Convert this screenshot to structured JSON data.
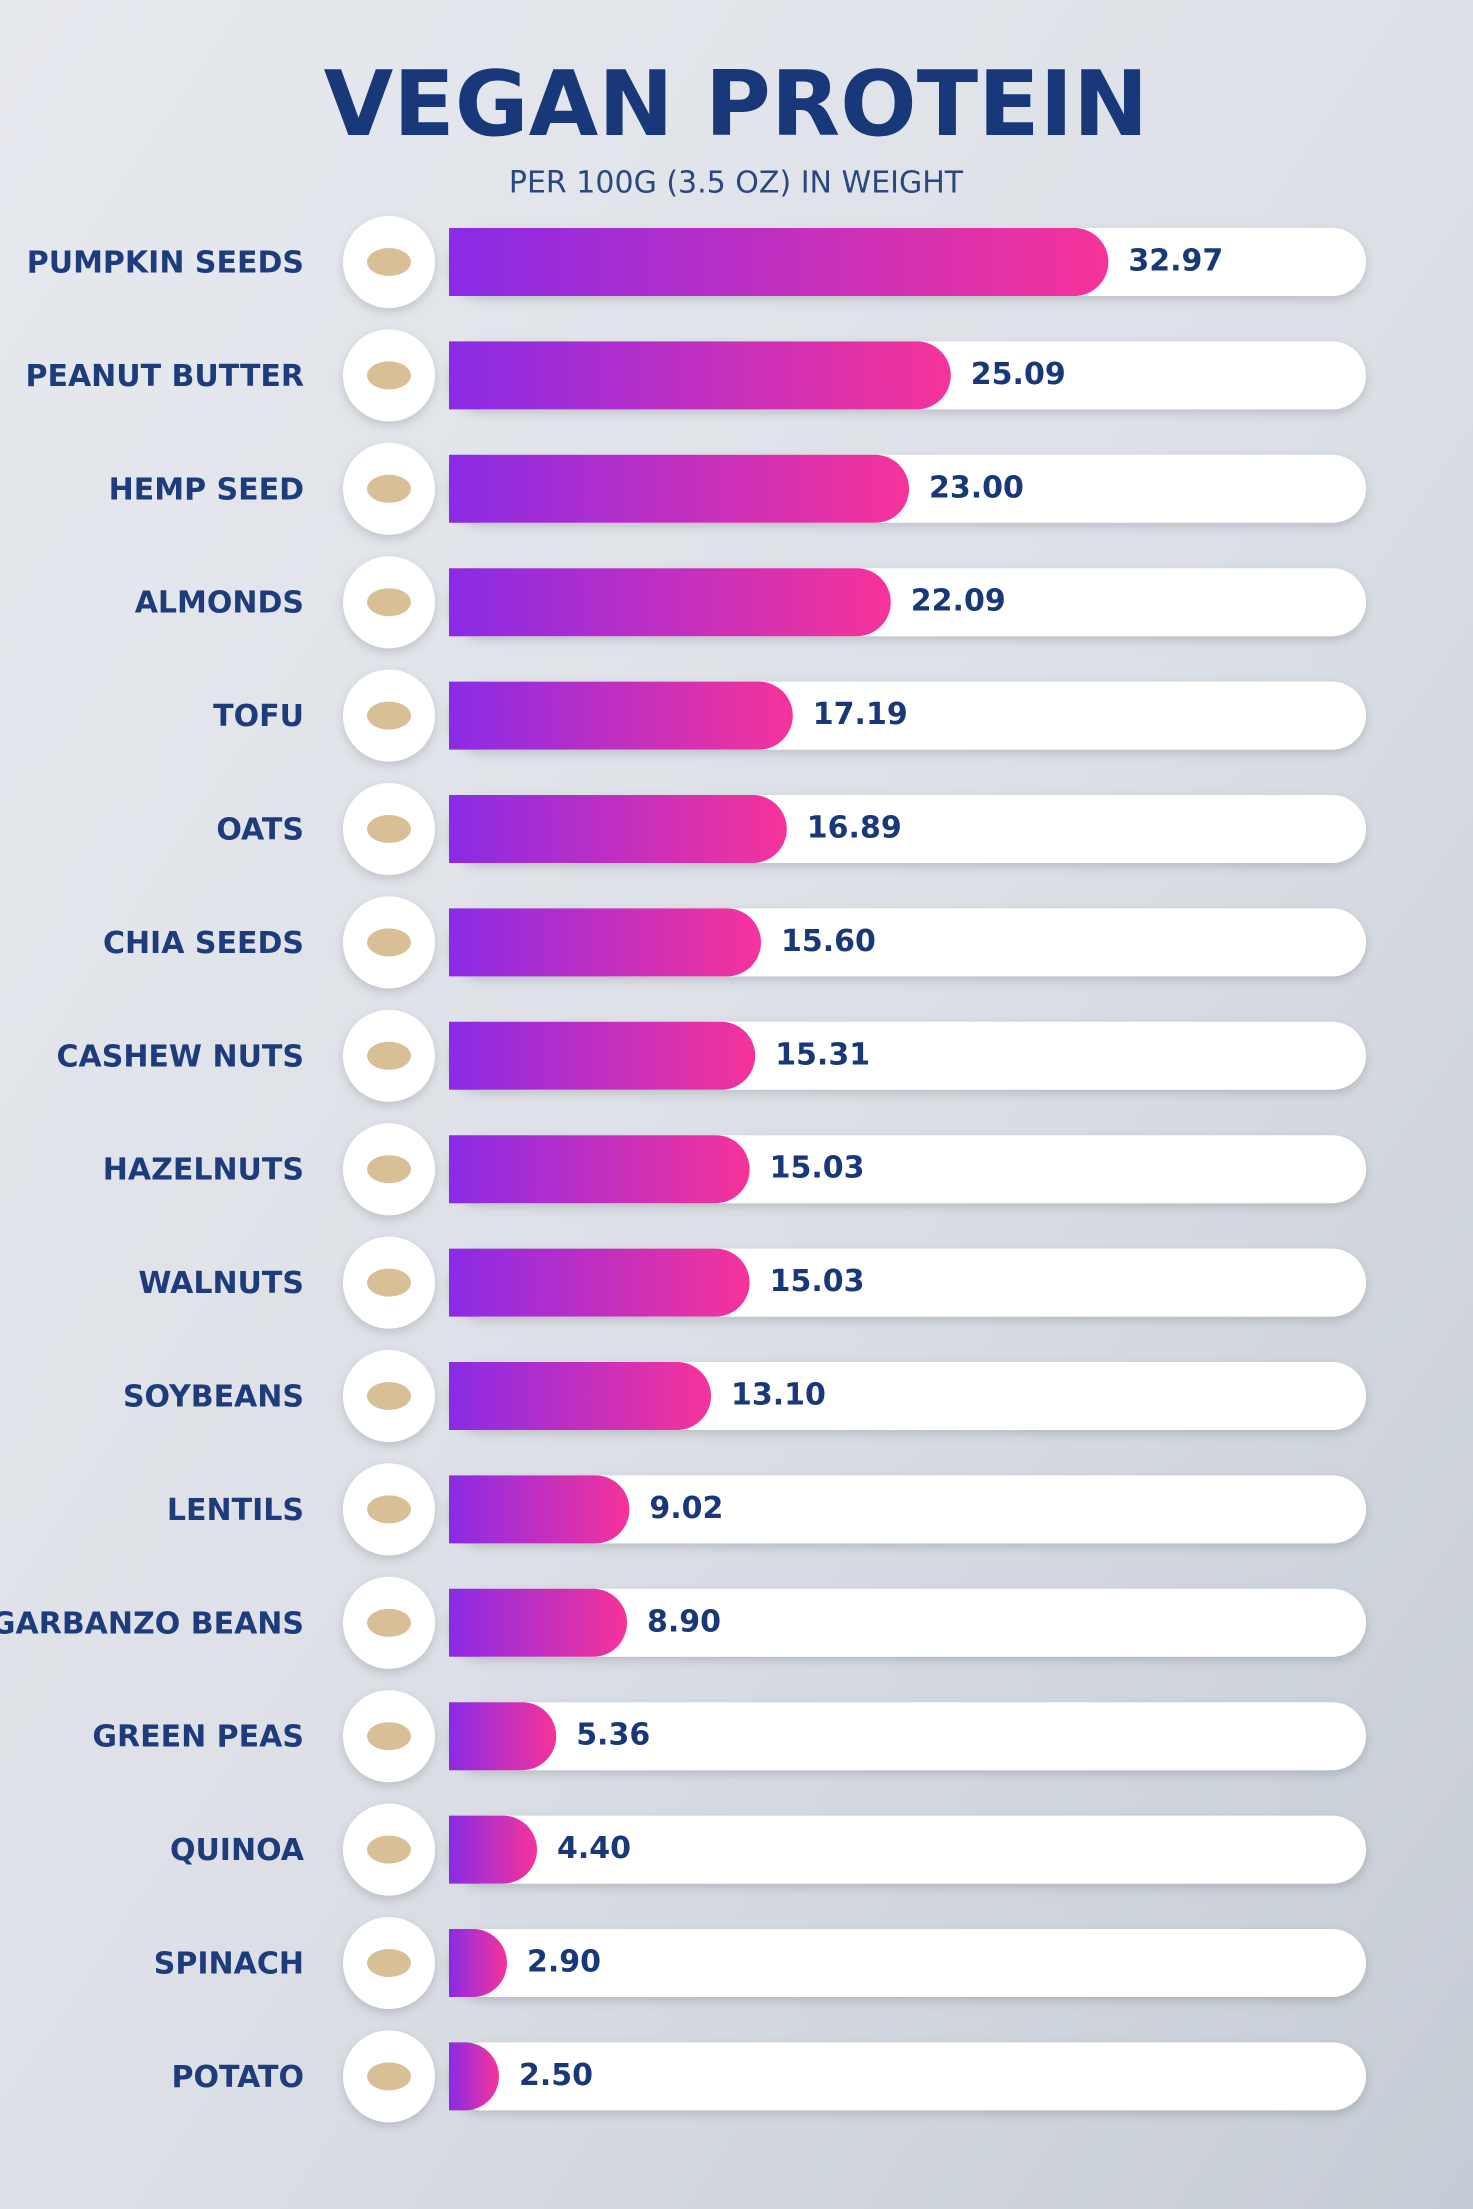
{
  "chart_data": {
    "type": "bar",
    "title": "VEGAN PROTEIN",
    "subtitle": "PER 100G (3.5 OZ) IN WEIGHT",
    "categories": [
      "PUMPKIN SEEDS",
      "PEANUT BUTTER",
      "HEMP SEED",
      "ALMONDS",
      "TOFU",
      "OATS",
      "CHIA SEEDS",
      "CASHEW NUTS",
      "HAZELNUTS",
      "WALNUTS",
      "SOYBEANS",
      "LENTILS",
      "GARBANZO BEANS",
      "GREEN PEAS",
      "QUINOA",
      "SPINACH",
      "POTATO"
    ],
    "values": [
      32.97,
      25.09,
      23,
      22.09,
      17.19,
      16.89,
      15.6,
      15.31,
      15.03,
      15.03,
      13.1,
      9.02,
      8.9,
      5.36,
      4.4,
      2.9,
      2.5
    ],
    "value_labels": [
      "32.97",
      "25.09",
      "23.00",
      "22.09",
      "17.19",
      "16.89",
      "15.60",
      "15.31",
      "15.03",
      "15.03",
      "13.10",
      "9.02",
      "8.90",
      "5.36",
      "4.40",
      "2.90",
      "2.50"
    ],
    "gradient": [
      "#8a2be6",
      "#f6339a"
    ]
  }
}
